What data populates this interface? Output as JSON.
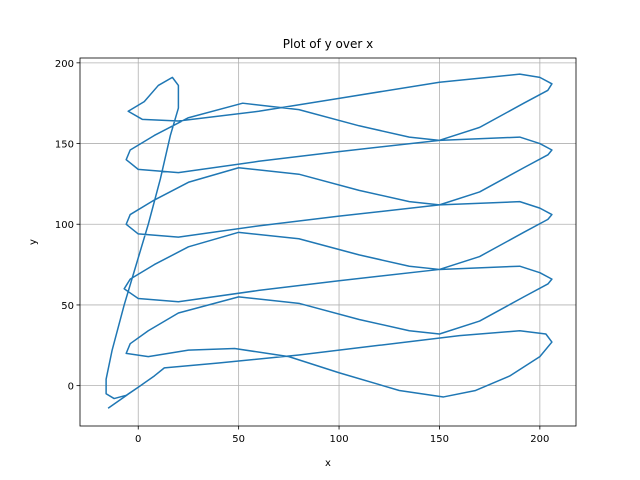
{
  "chart_data": {
    "type": "line",
    "title": "Plot of y over x",
    "x_label": "x",
    "y_label": "y",
    "series": [
      {
        "color": "#1f77b4",
        "x": [
          -15,
          -7,
          0,
          8,
          13,
          40,
          80,
          120,
          160,
          190,
          203,
          206,
          200,
          185,
          168,
          152,
          130,
          100,
          75,
          48,
          25,
          5,
          -6,
          -4,
          5,
          20,
          50,
          80,
          110,
          135,
          150,
          170,
          192,
          204,
          206,
          200,
          190,
          150,
          100,
          60,
          20,
          0,
          -7,
          -4,
          8,
          25,
          50,
          80,
          110,
          135,
          150,
          170,
          192,
          204,
          206,
          200,
          190,
          150,
          100,
          60,
          20,
          0,
          -6,
          -4,
          8,
          25,
          50,
          80,
          110,
          135,
          150,
          170,
          192,
          204,
          206,
          200,
          190,
          150,
          100,
          60,
          20,
          0,
          -6,
          -4,
          8,
          25,
          52,
          80,
          110,
          135,
          150,
          170,
          192,
          204,
          206,
          200,
          190,
          150,
          100,
          60,
          20,
          2,
          -5,
          3,
          10,
          17,
          20,
          20,
          16,
          11,
          5,
          -1,
          -7,
          -13,
          -16,
          -16,
          -12,
          -6,
          0
        ],
        "values": [
          -14,
          -7,
          -1,
          6,
          11,
          14,
          19,
          25,
          31,
          34,
          32,
          27,
          18,
          6,
          -3,
          -7,
          -3,
          8,
          18,
          23,
          22,
          18,
          20,
          26,
          34,
          45,
          55,
          51,
          41,
          34,
          32,
          40,
          55,
          63,
          66,
          70,
          74,
          72,
          65,
          59,
          52,
          54,
          60,
          66,
          75,
          86,
          95,
          91,
          81,
          74,
          72,
          80,
          95,
          103,
          106,
          110,
          114,
          112,
          105,
          99,
          92,
          94,
          100,
          106,
          115,
          126,
          135,
          131,
          121,
          114,
          112,
          120,
          135,
          143,
          146,
          150,
          154,
          152,
          145,
          139,
          132,
          134,
          140,
          146,
          155,
          166,
          175,
          171,
          161,
          154,
          152,
          160,
          175,
          183,
          187,
          191,
          193,
          188,
          178,
          170,
          164,
          165,
          170,
          176,
          186,
          191,
          186,
          172,
          155,
          128,
          100,
          75,
          50,
          22,
          4,
          -5,
          -8,
          -6,
          -1
        ]
      }
    ],
    "xlim": [
      -29,
      218
    ],
    "ylim": [
      -25,
      203
    ],
    "xticks": [
      0,
      50,
      100,
      150,
      200
    ],
    "yticks": [
      0,
      50,
      100,
      150,
      200
    ],
    "grid": true
  }
}
